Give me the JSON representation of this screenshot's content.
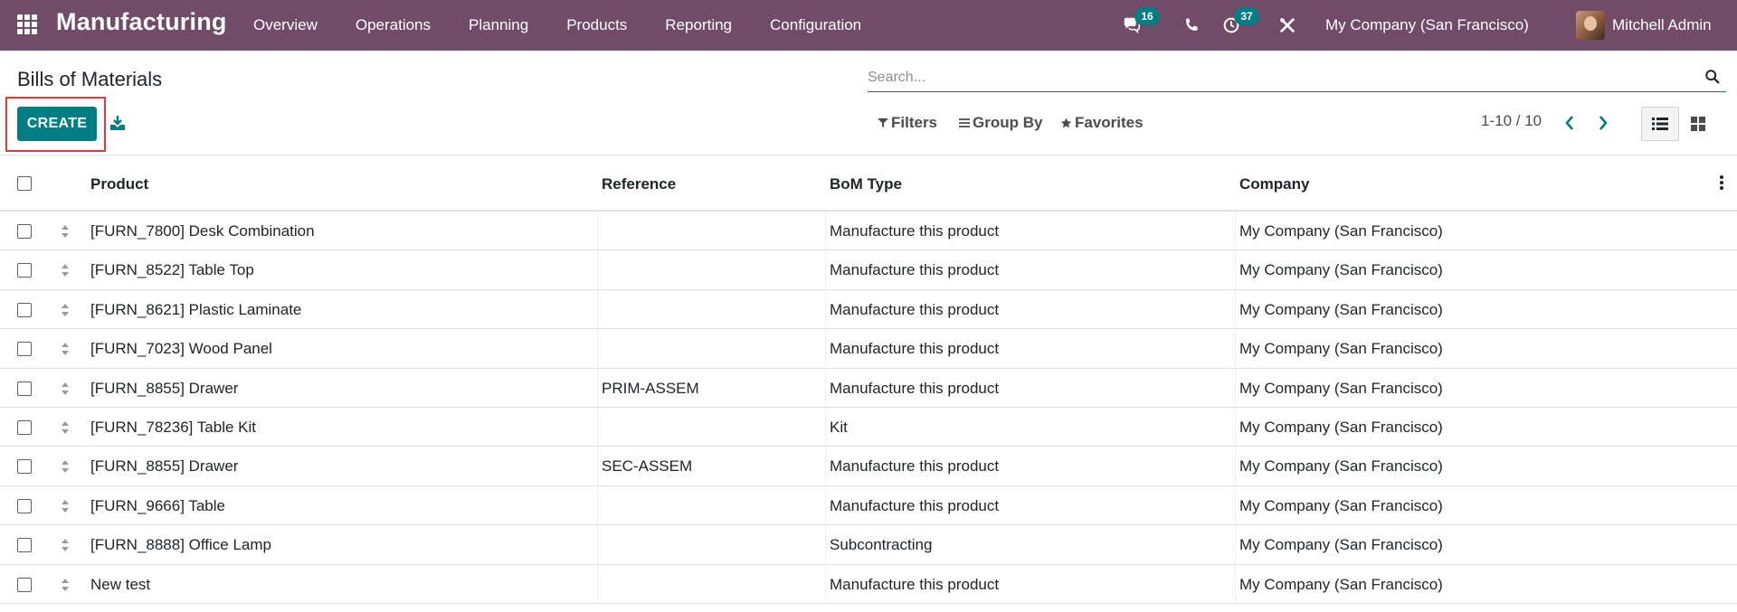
{
  "navbar": {
    "brand": "Manufacturing",
    "menu": [
      "Overview",
      "Operations",
      "Planning",
      "Products",
      "Reporting",
      "Configuration"
    ],
    "messages_count": "16",
    "activities_count": "37",
    "company": "My Company (San Francisco)",
    "user": "Mitchell Admin",
    "bg_color": "#714b67"
  },
  "control": {
    "title": "Bills of Materials",
    "search_placeholder": "Search...",
    "create_label": "CREATE",
    "filters_label": "Filters",
    "groupby_label": "Group By",
    "favorites_label": "Favorites",
    "pager_text": "1-10 / 10",
    "accent_color": "#017e84"
  },
  "table": {
    "headers": [
      "Product",
      "Reference",
      "BoM Type",
      "Company"
    ],
    "rows": [
      {
        "product": "[FURN_7800] Desk Combination",
        "reference": "",
        "type": "Manufacture this product",
        "company": "My Company (San Francisco)"
      },
      {
        "product": "[FURN_8522] Table Top",
        "reference": "",
        "type": "Manufacture this product",
        "company": "My Company (San Francisco)"
      },
      {
        "product": "[FURN_8621] Plastic Laminate",
        "reference": "",
        "type": "Manufacture this product",
        "company": "My Company (San Francisco)"
      },
      {
        "product": "[FURN_7023] Wood Panel",
        "reference": "",
        "type": "Manufacture this product",
        "company": "My Company (San Francisco)"
      },
      {
        "product": "[FURN_8855] Drawer",
        "reference": "PRIM-ASSEM",
        "type": "Manufacture this product",
        "company": "My Company (San Francisco)"
      },
      {
        "product": "[FURN_78236] Table Kit",
        "reference": "",
        "type": "Kit",
        "company": "My Company (San Francisco)"
      },
      {
        "product": "[FURN_8855] Drawer",
        "reference": "SEC-ASSEM",
        "type": "Manufacture this product",
        "company": "My Company (San Francisco)"
      },
      {
        "product": "[FURN_9666] Table",
        "reference": "",
        "type": "Manufacture this product",
        "company": "My Company (San Francisco)"
      },
      {
        "product": "[FURN_8888] Office Lamp",
        "reference": "",
        "type": "Subcontracting",
        "company": "My Company (San Francisco)"
      },
      {
        "product": "New test",
        "reference": "",
        "type": "Manufacture this product",
        "company": "My Company (San Francisco)"
      }
    ]
  }
}
